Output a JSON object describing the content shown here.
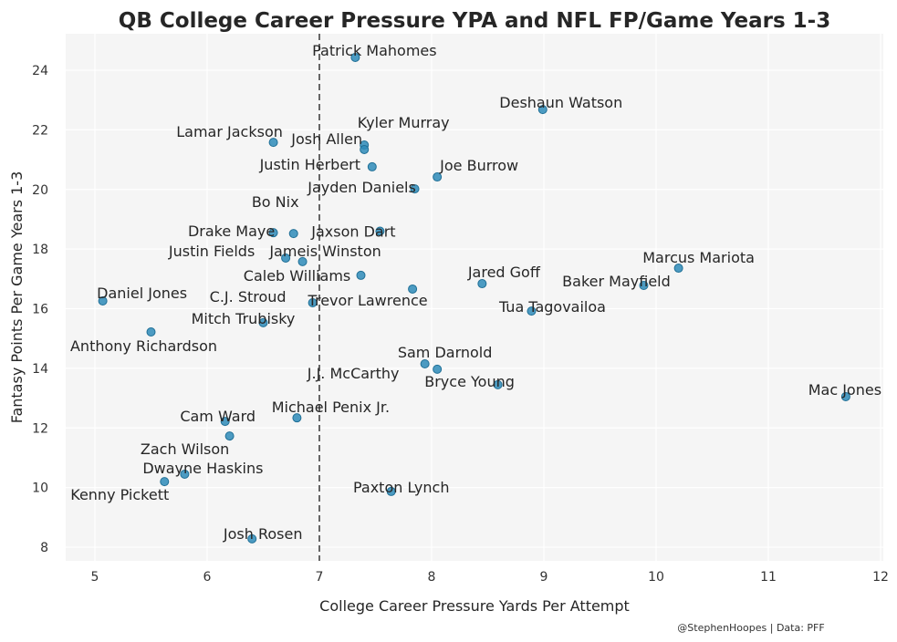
{
  "chart_data": {
    "type": "scatter",
    "title": "QB College Career Pressure YPA and NFL FP/Game Years 1-3",
    "xlabel": "College Career Pressure Yards Per Attempt",
    "ylabel": "Fantasy Points Per Game Years 1-3",
    "xlim": [
      4.75,
      12.02
    ],
    "ylim": [
      7.5,
      25.2
    ],
    "xticks": [
      5,
      6,
      7,
      8,
      9,
      10,
      11,
      12
    ],
    "yticks": [
      8,
      10,
      12,
      14,
      16,
      18,
      20,
      22,
      24
    ],
    "grid": true,
    "reference_line": {
      "x": 7,
      "style": "dashed"
    },
    "point_color": "#2e8bb8",
    "points": [
      {
        "name": "Patrick Mahomes",
        "x": 7.32,
        "y": 24.43
      },
      {
        "name": "Deshaun Watson",
        "x": 8.99,
        "y": 22.68
      },
      {
        "name": "Kyler Murray",
        "x": 7.4,
        "y": 21.49
      },
      {
        "name": "Josh Allen",
        "x": 7.4,
        "y": 21.34
      },
      {
        "name": "Lamar Jackson",
        "x": 6.59,
        "y": 21.58
      },
      {
        "name": "Justin Herbert",
        "x": 7.47,
        "y": 20.76
      },
      {
        "name": "Joe Burrow",
        "x": 8.05,
        "y": 20.42
      },
      {
        "name": "Jayden Daniels",
        "x": 7.85,
        "y": 20.02
      },
      {
        "name": "Bo Nix",
        "x": 6.77,
        "y": 18.52
      },
      {
        "name": "Drake Maye",
        "x": 6.59,
        "y": 18.55
      },
      {
        "name": "Jaxson Dart",
        "x": 7.54,
        "y": 18.6
      },
      {
        "name": "Justin Fields",
        "x": 6.7,
        "y": 17.7
      },
      {
        "name": "Jameis Winston",
        "x": 6.85,
        "y": 17.58
      },
      {
        "name": "Caleb Williams",
        "x": 7.37,
        "y": 17.12
      },
      {
        "name": "Trevor Lawrence",
        "x": 7.83,
        "y": 16.66
      },
      {
        "name": "C.J. Stroud",
        "x": 6.94,
        "y": 16.2
      },
      {
        "name": "Jared Goff",
        "x": 8.45,
        "y": 16.84
      },
      {
        "name": "Marcus Mariota",
        "x": 10.2,
        "y": 17.36
      },
      {
        "name": "Baker Mayfield",
        "x": 9.89,
        "y": 16.78
      },
      {
        "name": "Tua Tagovailoa",
        "x": 8.89,
        "y": 15.92
      },
      {
        "name": "Daniel Jones",
        "x": 5.07,
        "y": 16.26
      },
      {
        "name": "Mitch Trubisky",
        "x": 6.5,
        "y": 15.53
      },
      {
        "name": "Anthony Richardson",
        "x": 5.5,
        "y": 15.22
      },
      {
        "name": "Sam Darnold",
        "x": 7.94,
        "y": 14.15
      },
      {
        "name": "J.J. McCarthy",
        "x": 8.05,
        "y": 13.97
      },
      {
        "name": "Bryce Young",
        "x": 8.59,
        "y": 13.45
      },
      {
        "name": "Mac Jones",
        "x": 11.69,
        "y": 13.05
      },
      {
        "name": "Michael Penix Jr.",
        "x": 6.8,
        "y": 12.34
      },
      {
        "name": "Cam Ward",
        "x": 6.16,
        "y": 12.22
      },
      {
        "name": "Zach Wilson",
        "x": 6.2,
        "y": 11.73
      },
      {
        "name": "Dwayne Haskins",
        "x": 5.8,
        "y": 10.45
      },
      {
        "name": "Kenny Pickett",
        "x": 5.62,
        "y": 10.2
      },
      {
        "name": "Paxton Lynch",
        "x": 7.64,
        "y": 9.87
      },
      {
        "name": "Josh Rosen",
        "x": 6.4,
        "y": 8.28
      }
    ],
    "credit": "@StephenHoopes | Data: PFF"
  }
}
